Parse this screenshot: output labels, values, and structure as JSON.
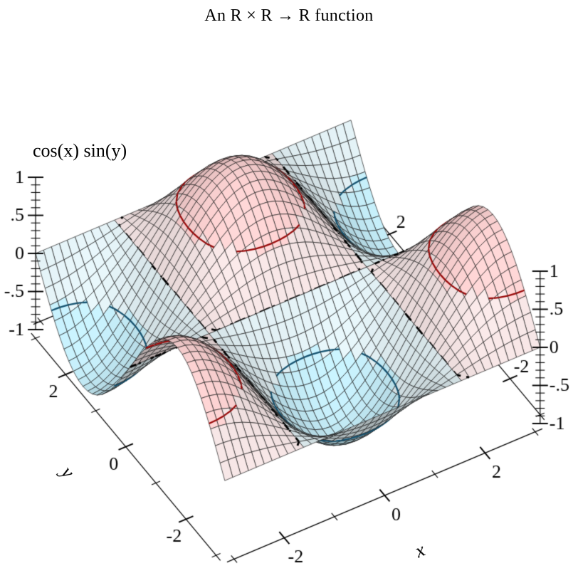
{
  "chart_data": {
    "type": "surface3d",
    "title": "An R × R →  R function",
    "x_label": "x",
    "y_label": "y",
    "z_label": "cos(x) sin(y)",
    "function_js": "Math.cos(x)*Math.sin(y)",
    "x_range": [
      -3.141592653589793,
      3.141592653589793
    ],
    "y_range": [
      -3.141592653589793,
      3.141592653589793
    ],
    "z_range": [
      -1,
      1
    ],
    "samples": 41,
    "x_ticks": {
      "major": [
        {
          "v": -2,
          "label": "-2"
        },
        {
          "v": 0,
          "label": "0"
        },
        {
          "v": 2,
          "label": "2"
        }
      ],
      "minor": [
        -3,
        -1,
        1,
        3
      ]
    },
    "y_ticks": {
      "major": [
        {
          "v": 2,
          "label": "2"
        },
        {
          "v": 0,
          "label": "0"
        },
        {
          "v": -2,
          "label": "-2"
        }
      ],
      "minor": [
        3,
        1,
        -1,
        -3
      ]
    },
    "z_ticks": {
      "major": [
        {
          "v": 1,
          "label": "1"
        },
        {
          "v": 0.5,
          "label": ".5"
        },
        {
          "v": 0,
          "label": "0"
        },
        {
          "v": -0.5,
          "label": "-.5"
        },
        {
          "v": -1,
          "label": "-1"
        }
      ],
      "minor_step": 0.1
    },
    "contours": [
      {
        "level": -0.5,
        "color": "#155270",
        "style": "solid"
      },
      {
        "level": 0,
        "color": "#000000",
        "style": "dashed"
      },
      {
        "level": 0.5,
        "color": "#9a0b0b",
        "style": "solid"
      }
    ],
    "interval_bounds": [
      -1,
      -0.5,
      0,
      0.5,
      1
    ],
    "interval_colors": [
      "#c0e7f2",
      "#dceaee",
      "#eedede",
      "#f6cdcd"
    ],
    "mesh_color": "#1d1d1d",
    "axis_color": "#000000",
    "background": "#ffffff",
    "legend": "none"
  }
}
